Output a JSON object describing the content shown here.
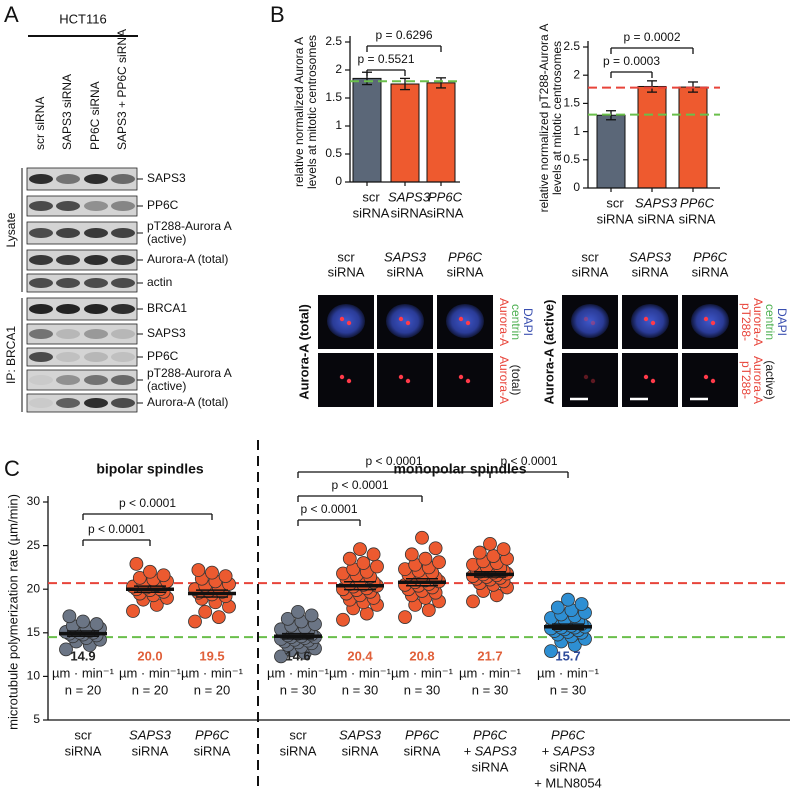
{
  "panel_labels": [
    "A",
    "B",
    "C"
  ],
  "blot": {
    "cell_line": "HCT116",
    "lanes": [
      "scr siRNA",
      "SAPS3 siRNA",
      "PP6C siRNA",
      "SAPS3 + PP6C siRNA"
    ],
    "lysate_label": "Lysate",
    "ip_label": "IP: BRCA1",
    "lysate_bands": [
      [
        "SAPS3"
      ],
      [
        "PP6C"
      ],
      [
        "pT288-Aurora A",
        "(active)"
      ],
      [
        "Aurora-A (total)"
      ],
      [
        "actin"
      ]
    ],
    "ip_bands": [
      [
        "BRCA1"
      ],
      [
        "SAPS3"
      ],
      [
        "PP6C"
      ],
      [
        "pT288-Aurora A",
        "(active)"
      ],
      [
        "Aurora-A (total)"
      ]
    ]
  },
  "imaging": [
    {
      "columns": [
        [
          "scr",
          "siRNA"
        ],
        [
          "SAPS3",
          "siRNA"
        ],
        [
          "PP6C",
          "siRNA"
        ]
      ],
      "row_label": "Aurora-A (total)",
      "merge_legend": [
        {
          "text": "Aurora-A",
          "color": "#e8443a"
        },
        {
          "text": "centrin",
          "color": "#4caf50"
        },
        {
          "text": "DAPI",
          "color": "#3a4fb0"
        }
      ],
      "single_legend": [
        {
          "text": "Aurora-A",
          "color": "#e8443a"
        },
        {
          "text": "(total)",
          "color": "#222222"
        }
      ]
    },
    {
      "columns": [
        [
          "scr",
          "siRNA"
        ],
        [
          "SAPS3",
          "siRNA"
        ],
        [
          "PP6C",
          "siRNA"
        ]
      ],
      "row_label": "Aurora-A (active)",
      "merge_legend": [
        {
          "text": "pT288-",
          "color": "#e8443a"
        },
        {
          "text": "Aurora-A",
          "color": "#e8443a"
        },
        {
          "text": "centrin",
          "color": "#4caf50"
        },
        {
          "text": "DAPI",
          "color": "#3a4fb0"
        }
      ],
      "single_legend": [
        {
          "text": "pT288-",
          "color": "#e8443a"
        },
        {
          "text": "Aurora-A",
          "color": "#e8443a"
        },
        {
          "text": "(active)",
          "color": "#222222"
        }
      ]
    }
  ],
  "chart_data": [
    {
      "type": "bar",
      "ylabel": [
        "relative normalized Aurora A",
        "levels at mitotic centrosomes"
      ],
      "categories": [
        [
          "scr",
          "siRNA"
        ],
        [
          "SAPS3",
          "siRNA"
        ],
        [
          "PP6C",
          "siRNA"
        ]
      ],
      "values": [
        1.85,
        1.75,
        1.77
      ],
      "errors": [
        0.11,
        0.1,
        0.09
      ],
      "colors": [
        "#5b6778",
        "#ee5a2f",
        "#ee5a2f"
      ],
      "ylim": [
        0,
        2.5
      ],
      "yticks": [
        0,
        0.5,
        1,
        1.5,
        2,
        2.5
      ],
      "reference_lines": [
        {
          "value": 1.8,
          "color": "#6abf4b"
        }
      ],
      "annotations": [
        "p = 0.5521",
        "p = 0.6296"
      ]
    },
    {
      "type": "bar",
      "ylabel": [
        "relative normalized pT288-Aurora A",
        "levels at mitotic centrosomes"
      ],
      "categories": [
        [
          "scr",
          "siRNA"
        ],
        [
          "SAPS3",
          "siRNA"
        ],
        [
          "PP6C",
          "siRNA"
        ]
      ],
      "values": [
        1.29,
        1.8,
        1.79
      ],
      "errors": [
        0.08,
        0.1,
        0.09
      ],
      "colors": [
        "#5b6778",
        "#ee5a2f",
        "#ee5a2f"
      ],
      "ylim": [
        0,
        2.5
      ],
      "yticks": [
        0,
        0.5,
        1,
        1.5,
        2,
        2.5
      ],
      "reference_lines": [
        {
          "value": 1.78,
          "color": "#e8443a"
        },
        {
          "value": 1.3,
          "color": "#6abf4b"
        }
      ],
      "annotations": [
        "p = 0.0003",
        "p = 0.0002"
      ]
    },
    {
      "type": "dot",
      "ylabel": "microtubule polymerization rate (µm/min)",
      "group_labels": [
        "bipolar spindles",
        "monopolar spindles"
      ],
      "categories": [
        [
          "scr",
          "siRNA"
        ],
        [
          "SAPS3",
          "siRNA"
        ],
        [
          "PP6C",
          "siRNA"
        ],
        [
          "scr",
          "siRNA"
        ],
        [
          "SAPS3",
          "siRNA"
        ],
        [
          "PP6C",
          "siRNA"
        ],
        [
          "PP6C",
          "+ SAPS3",
          "siRNA"
        ],
        [
          "PP6C",
          "+ SAPS3",
          "siRNA",
          "+ MLN8054"
        ]
      ],
      "colors": [
        "#6b7585",
        "#ec5a30",
        "#ec5a30",
        "#6b7585",
        "#ec5a30",
        "#ec5a30",
        "#ec5a30",
        "#2e8fd3"
      ],
      "mean_label_colors": [
        "#222222",
        "#e0603a",
        "#e0603a",
        "#222222",
        "#e0603a",
        "#e0603a",
        "#e0603a",
        "#2c4a9a"
      ],
      "means": [
        14.9,
        20.0,
        19.5,
        14.6,
        20.4,
        20.8,
        21.7,
        15.7
      ],
      "value_labels": [
        "14.9",
        "20.0",
        "19.5",
        "14.6",
        "20.4",
        "20.8",
        "21.7",
        "15.7"
      ],
      "sem": [
        0.3,
        0.35,
        0.4,
        0.3,
        0.45,
        0.4,
        0.3,
        0.3
      ],
      "unit_label": "µm · min⁻¹",
      "n_labels": [
        "n = 20",
        "n = 20",
        "n = 20",
        "n = 30",
        "n = 30",
        "n = 30",
        "n = 30",
        "n = 30"
      ],
      "points": [
        [
          13.1,
          13.6,
          14.0,
          14.2,
          14.4,
          14.6,
          14.7,
          14.8,
          14.9,
          15.0,
          15.0,
          15.1,
          15.2,
          15.3,
          15.5,
          15.6,
          15.8,
          16.0,
          16.3,
          16.9
        ],
        [
          17.5,
          18.2,
          18.8,
          19.0,
          19.3,
          19.5,
          19.7,
          19.9,
          20.0,
          20.0,
          20.2,
          20.3,
          20.5,
          20.7,
          20.9,
          21.1,
          21.3,
          21.6,
          22.0,
          22.9
        ],
        [
          16.3,
          16.8,
          17.4,
          18.0,
          18.5,
          18.9,
          19.2,
          19.4,
          19.6,
          19.7,
          19.8,
          20.0,
          20.2,
          20.4,
          20.6,
          20.9,
          21.2,
          21.5,
          21.9,
          22.2
        ],
        [
          12.3,
          12.7,
          13.0,
          13.2,
          13.4,
          13.6,
          13.8,
          13.9,
          14.0,
          14.1,
          14.2,
          14.3,
          14.4,
          14.5,
          14.5,
          14.6,
          14.7,
          14.8,
          14.9,
          15.0,
          15.1,
          15.2,
          15.4,
          15.6,
          15.8,
          16.0,
          16.3,
          16.6,
          17.0,
          17.4
        ],
        [
          16.5,
          17.2,
          17.8,
          18.2,
          18.5,
          18.8,
          19.0,
          19.3,
          19.5,
          19.7,
          19.9,
          20.0,
          20.1,
          20.3,
          20.4,
          20.5,
          20.6,
          20.8,
          21.0,
          21.2,
          21.4,
          21.6,
          21.8,
          22.0,
          22.3,
          22.6,
          23.0,
          23.5,
          24.0,
          24.6
        ],
        [
          16.8,
          17.6,
          18.2,
          18.6,
          19.0,
          19.3,
          19.6,
          19.8,
          20.0,
          20.2,
          20.4,
          20.5,
          20.6,
          20.8,
          20.9,
          21.0,
          21.1,
          21.3,
          21.5,
          21.7,
          21.9,
          22.1,
          22.3,
          22.5,
          22.8,
          23.1,
          23.5,
          24.0,
          24.7,
          25.9
        ],
        [
          18.6,
          19.3,
          19.8,
          20.2,
          20.5,
          20.7,
          20.9,
          21.1,
          21.2,
          21.3,
          21.4,
          21.5,
          21.6,
          21.7,
          21.8,
          21.9,
          22.0,
          22.1,
          22.2,
          22.3,
          22.4,
          22.6,
          22.8,
          23.0,
          23.2,
          23.5,
          23.8,
          24.2,
          24.6,
          25.2
        ],
        [
          12.9,
          13.6,
          14.0,
          14.3,
          14.6,
          14.8,
          15.0,
          15.1,
          15.2,
          15.3,
          15.4,
          15.5,
          15.6,
          15.6,
          15.7,
          15.8,
          15.9,
          16.0,
          16.1,
          16.2,
          16.3,
          16.5,
          16.7,
          16.9,
          17.1,
          17.3,
          17.6,
          17.9,
          18.3,
          18.8
        ]
      ],
      "ylim": [
        5,
        30
      ],
      "yticks": [
        5,
        10,
        15,
        20,
        25,
        30
      ],
      "reference_lines": [
        {
          "value": 20.7,
          "color": "#e8443a"
        },
        {
          "value": 14.5,
          "color": "#6abf4b"
        }
      ],
      "annotations": [
        "p < 0.0001",
        "p < 0.0001",
        "p < 0.0001",
        "p < 0.0001",
        "p < 0.0001",
        "p < 0.0001"
      ]
    }
  ]
}
